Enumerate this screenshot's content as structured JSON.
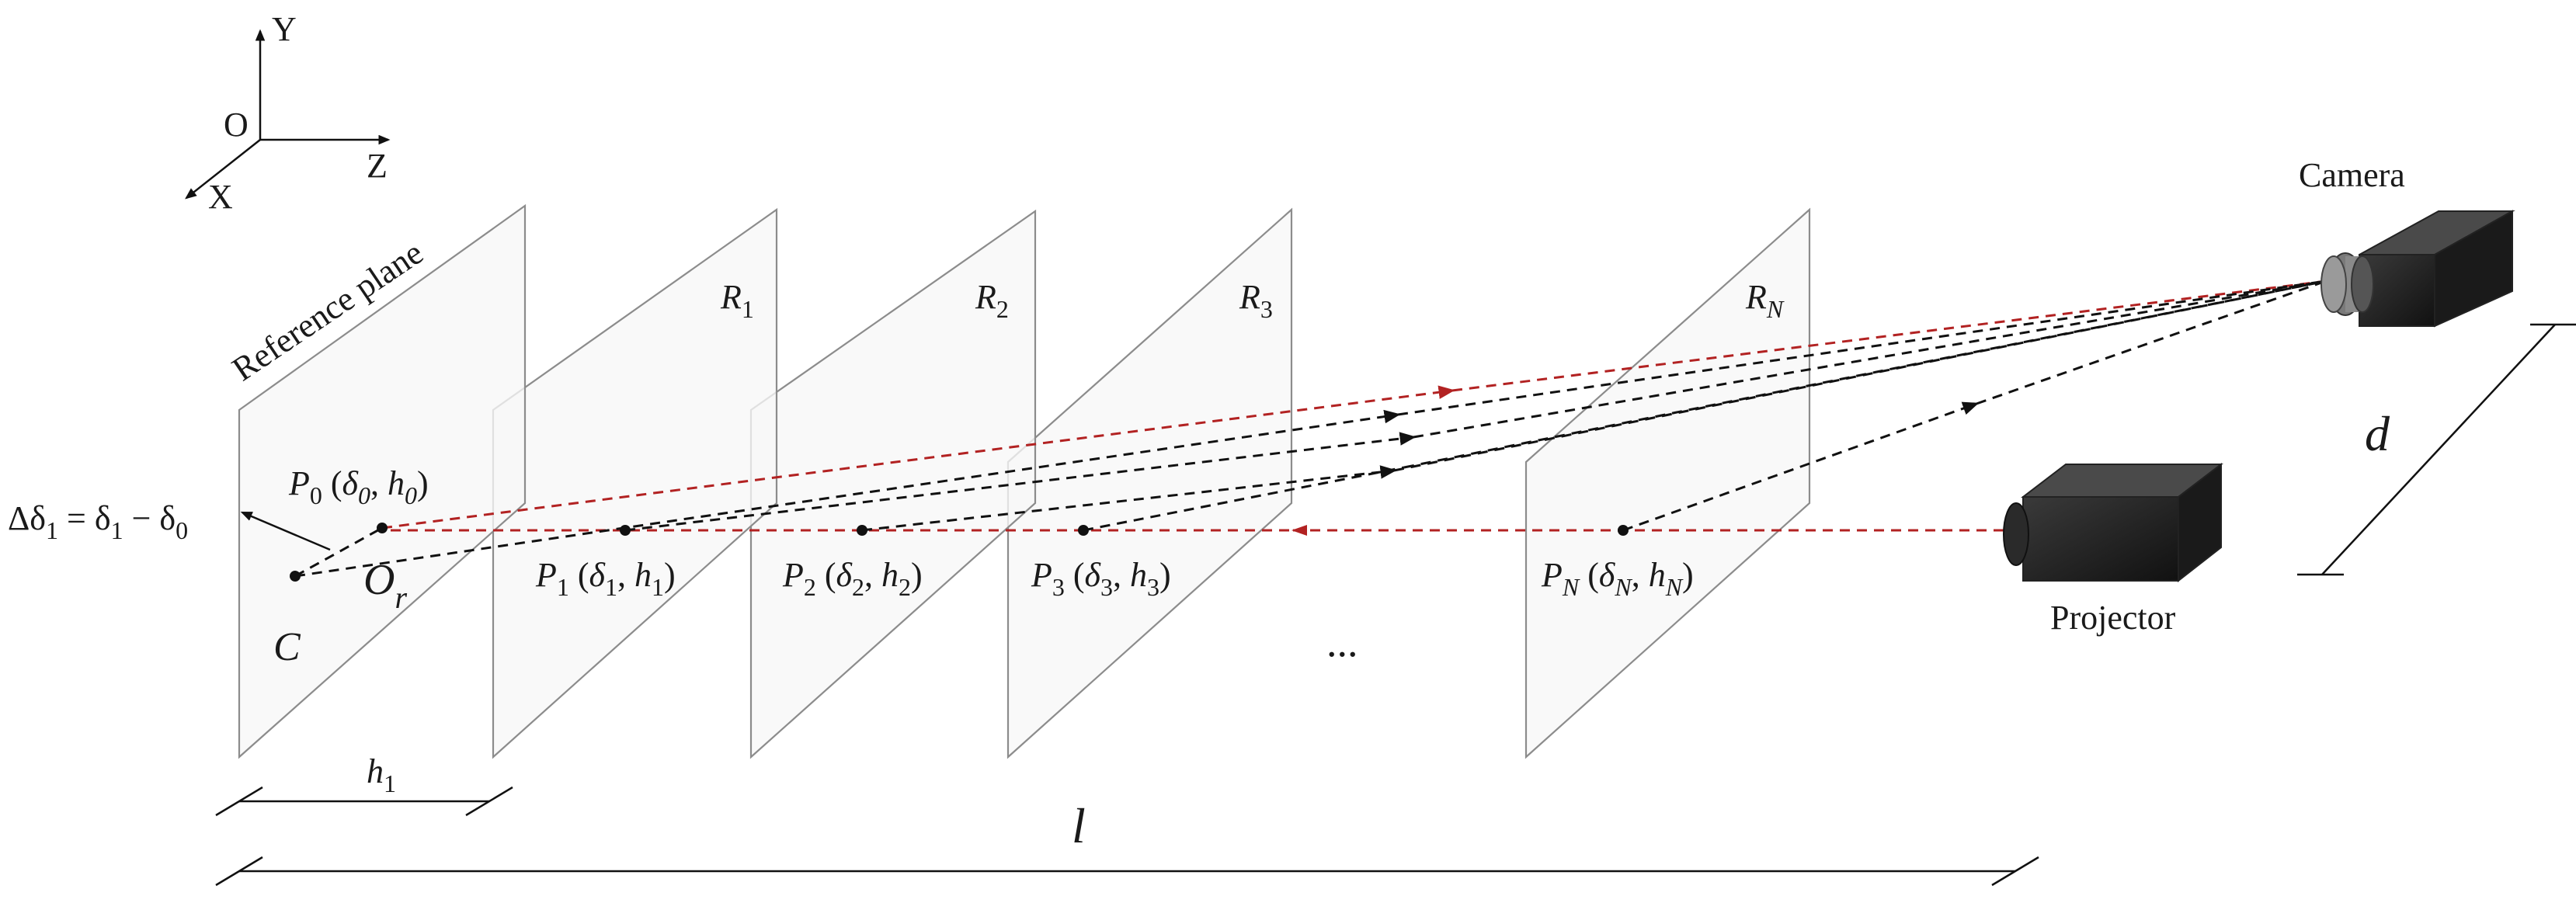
{
  "axes": {
    "y": "Y",
    "origin": "O",
    "z": "Z",
    "x": "X"
  },
  "planes": [
    {
      "id": "reference",
      "label": "Reference plane"
    },
    {
      "id": "r1",
      "label": "R",
      "sub": "1"
    },
    {
      "id": "r2",
      "label": "R",
      "sub": "2"
    },
    {
      "id": "r3",
      "label": "R",
      "sub": "3"
    },
    {
      "id": "rn",
      "label": "R",
      "sub": "N"
    }
  ],
  "points": {
    "p0": {
      "name": "P",
      "sub": "0",
      "d": "δ",
      "dsub": "0",
      "h": "h",
      "hsub": "0"
    },
    "p1": {
      "name": "P",
      "sub": "1",
      "d": "δ",
      "dsub": "1",
      "h": "h",
      "hsub": "1"
    },
    "p2": {
      "name": "P",
      "sub": "2",
      "d": "δ",
      "dsub": "2",
      "h": "h",
      "hsub": "2"
    },
    "p3": {
      "name": "P",
      "sub": "3",
      "d": "δ",
      "dsub": "3",
      "h": "h",
      "hsub": "3"
    },
    "pn": {
      "name": "P",
      "sub": "N",
      "d": "δ",
      "dsub": "N",
      "h": "h",
      "hsub": "N"
    }
  },
  "labels": {
    "c": "C",
    "or_main": "O",
    "or_sub": "r",
    "delta_formula": {
      "lead": "Δδ",
      "lead_sub": "1",
      "eq": " = δ",
      "eq_sub": "1",
      "minus": " − δ",
      "minus_sub": "0"
    },
    "h1_main": "h",
    "h1_sub": "1",
    "ellipsis": "...",
    "l": "l",
    "d": "d",
    "camera": "Camera",
    "projector": "Projector"
  }
}
